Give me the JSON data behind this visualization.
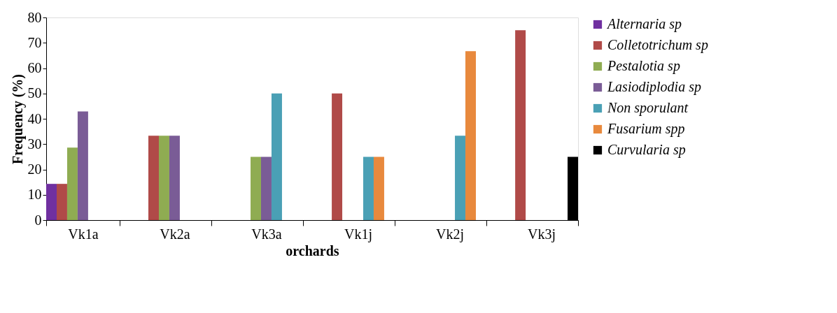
{
  "chart_data": {
    "type": "bar",
    "xlabel": "orchards",
    "ylabel": "Frequency (%)",
    "categories": [
      "Vk1a",
      "Vk2a",
      "Vk3a",
      "Vk1j",
      "Vk2j",
      "Vk3j"
    ],
    "series": [
      {
        "name": "Alternaria sp",
        "color": "#7030a0",
        "values": [
          14.3,
          null,
          null,
          null,
          null,
          null
        ]
      },
      {
        "name": "Colletotrichum sp",
        "color": "#b04a48",
        "values": [
          14.3,
          33.3,
          null,
          50,
          null,
          75
        ]
      },
      {
        "name": "Pestalotia sp",
        "color": "#8fac52",
        "values": [
          28.6,
          33.3,
          25,
          null,
          null,
          null
        ]
      },
      {
        "name": "Lasiodiplodia sp",
        "color": "#7a5c96",
        "values": [
          42.9,
          33.3,
          25,
          null,
          null,
          null
        ]
      },
      {
        "name": "Non sporulant",
        "color": "#4aa0b5",
        "values": [
          null,
          null,
          50,
          25,
          33.3,
          null
        ]
      },
      {
        "name": "Fusarium spp",
        "color": "#e8893d",
        "values": [
          null,
          null,
          null,
          25,
          66.7,
          null
        ]
      },
      {
        "name": "Curvularia sp",
        "color": "#000000",
        "values": [
          null,
          null,
          null,
          null,
          null,
          25
        ]
      }
    ],
    "ylim": [
      0,
      80
    ],
    "yticks": [
      0,
      10,
      20,
      30,
      40,
      50,
      60,
      70,
      80
    ],
    "grid": false,
    "legend": "right"
  }
}
